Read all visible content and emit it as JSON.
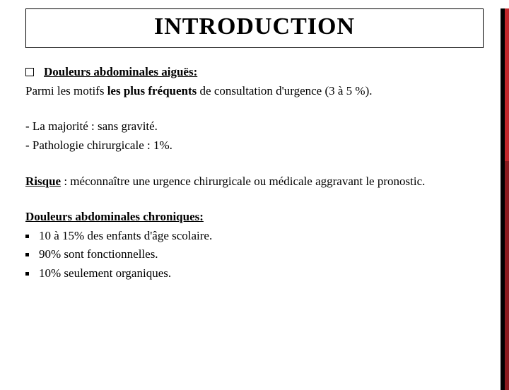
{
  "colors": {
    "text": "#000000",
    "background": "#ffffff",
    "accent_black": "#000000",
    "accent_red_top": "#c3272b",
    "accent_red_bottom": "#8a1a1e",
    "border": "#000000"
  },
  "typography": {
    "title_fontsize": 34,
    "body_fontsize": 17,
    "font_family": "Times New Roman"
  },
  "title": "INTRODUCTION",
  "section1": {
    "heading": "Douleurs abdominales aiguës:",
    "para_prefix": "Parmi les motifs ",
    "para_bold": "les plus fréquents",
    "para_suffix": " de consultation d'urgence  (3 à 5 %)."
  },
  "dashes": {
    "d1": "- La majorité : sans gravité.",
    "d2": "- Pathologie chirurgicale : 1%."
  },
  "risk": {
    "label": "Risque",
    "text": " : méconnaître une urgence chirurgicale ou médicale aggravant le pronostic."
  },
  "chronic": {
    "heading": "Douleurs abdominales chroniques:",
    "items": {
      "i1": "10 à 15% des enfants d'âge scolaire.",
      "i2": "90% sont fonctionnelles.",
      "i3": "10% seulement organiques."
    }
  }
}
